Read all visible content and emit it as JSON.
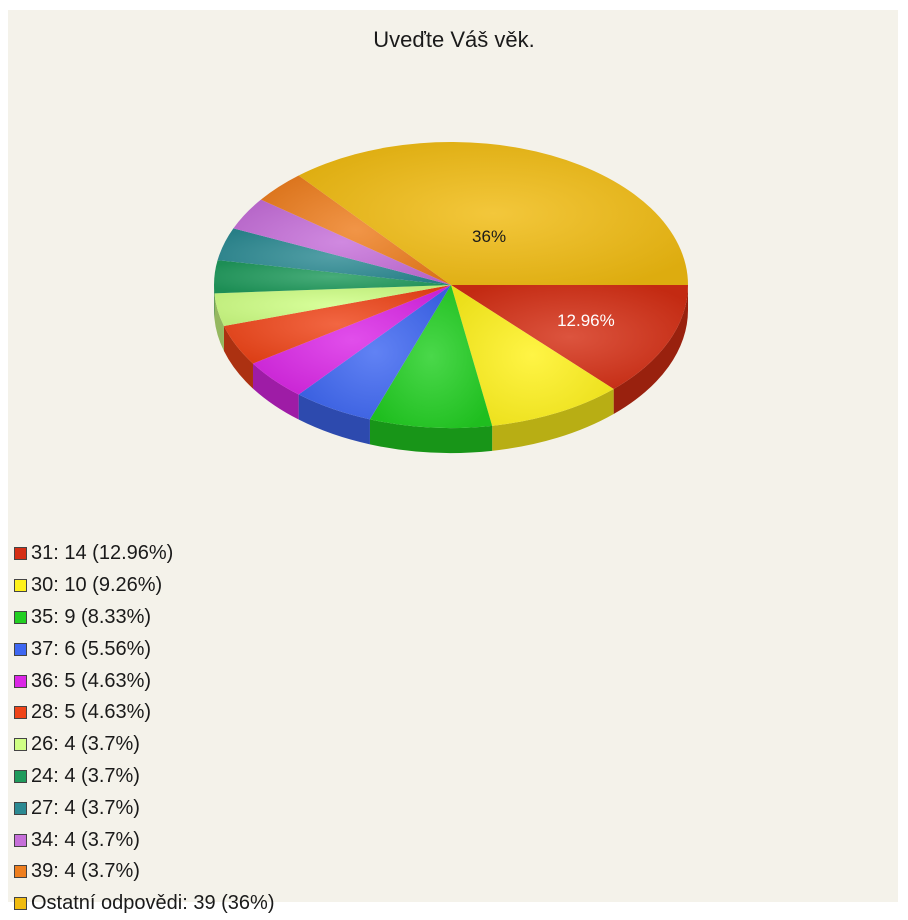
{
  "chart_data": {
    "type": "pie",
    "title": "Uveďte Váš věk.",
    "slices": [
      {
        "label": "31",
        "count": 14,
        "percent": 12.96,
        "legend_text": "31: 14 (12.96%)",
        "color": "#d42e14"
      },
      {
        "label": "30",
        "count": 10,
        "percent": 9.26,
        "legend_text": "30: 10 (9.26%)",
        "color": "#fff21c"
      },
      {
        "label": "35",
        "count": 9,
        "percent": 8.33,
        "legend_text": "35: 9 (8.33%)",
        "color": "#22cf22"
      },
      {
        "label": "37",
        "count": 6,
        "percent": 5.56,
        "legend_text": "37: 6 (5.56%)",
        "color": "#3e67f2"
      },
      {
        "label": "36",
        "count": 5,
        "percent": 4.63,
        "legend_text": "36: 5 (4.63%)",
        "color": "#db27e6"
      },
      {
        "label": "28",
        "count": 5,
        "percent": 4.63,
        "legend_text": "28: 5 (4.63%)",
        "color": "#ef4418"
      },
      {
        "label": "26",
        "count": 4,
        "percent": 3.7,
        "legend_text": "26: 4 (3.7%)",
        "color": "#cfff85"
      },
      {
        "label": "24",
        "count": 4,
        "percent": 3.7,
        "legend_text": "24: 4 (3.7%)",
        "color": "#1f9a5c"
      },
      {
        "label": "27",
        "count": 4,
        "percent": 3.7,
        "legend_text": "27: 4 (3.7%)",
        "color": "#2c8a93"
      },
      {
        "label": "34",
        "count": 4,
        "percent": 3.7,
        "legend_text": "34: 4 (3.7%)",
        "color": "#c66fd9"
      },
      {
        "label": "39",
        "count": 4,
        "percent": 3.7,
        "legend_text": "39: 4 (3.7%)",
        "color": "#ee7e1e"
      },
      {
        "label": "Ostatní odpovědi",
        "count": 39,
        "percent": 36,
        "legend_text": "Ostatní odpovědi: 39 (36%)",
        "color": "#f0bb10"
      }
    ],
    "slice_labels": [
      {
        "slice": "31",
        "text": "12.96%",
        "color": "#ffffff"
      },
      {
        "slice": "Ostatní odpovědi",
        "text": "36%",
        "color": "#1a1a1a"
      }
    ],
    "legend_position": "bottom-left"
  }
}
